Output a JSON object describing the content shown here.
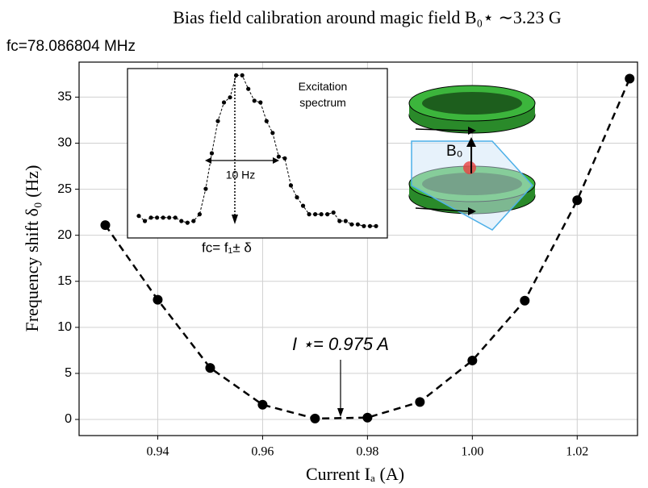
{
  "chart_data": [
    {
      "type": "line",
      "title": "Bias field calibration around magic field B₀⋆ ∼3.23 G",
      "subtitle": "fc=78.086804 MHz",
      "xlabel": "Current Iₐ (A)",
      "ylabel": "Frequency shift δ₀ (Hz)",
      "x": [
        0.93,
        0.94,
        0.95,
        0.96,
        0.97,
        0.98,
        0.99,
        1.0,
        1.01,
        1.02,
        1.03
      ],
      "values": [
        21.1,
        13,
        5.6,
        1.6,
        0.1,
        0.2,
        1.9,
        6.4,
        12.9,
        23.8,
        37
      ],
      "color": "#000000",
      "xlim": [
        0.925,
        1.0315
      ],
      "ylim": [
        -1.75,
        38.8
      ],
      "xticks": [
        0.94,
        0.96,
        0.98,
        {
          "value": 1,
          "label": "1.00"
        },
        1.02
      ],
      "yticks": [
        0,
        5,
        10,
        15,
        20,
        25,
        30,
        35
      ],
      "grid": true,
      "annotations": [
        "I ⋆= 0.975 A"
      ]
    },
    {
      "type": "line",
      "title": "Excitation spectrum",
      "values": [
        0.13,
        0.1,
        0.12,
        0.12,
        0.12,
        0.12,
        0.12,
        0.1,
        0.09,
        0.1,
        0.14,
        0.29,
        0.5,
        0.69,
        0.8,
        0.83,
        0.96,
        0.96,
        0.88,
        0.81,
        0.8,
        0.69,
        0.62,
        0.48,
        0.47,
        0.31,
        0.24,
        0.19,
        0.14,
        0.14,
        0.14,
        0.14,
        0.15,
        0.1,
        0.1,
        0.08,
        0.08,
        0.07,
        0.07,
        0.07
      ],
      "color": "#000000",
      "ylim": [
        0,
        1
      ],
      "annotations": [
        "10 Hz",
        "fc= f₁± δ",
        "B₀"
      ]
    }
  ]
}
